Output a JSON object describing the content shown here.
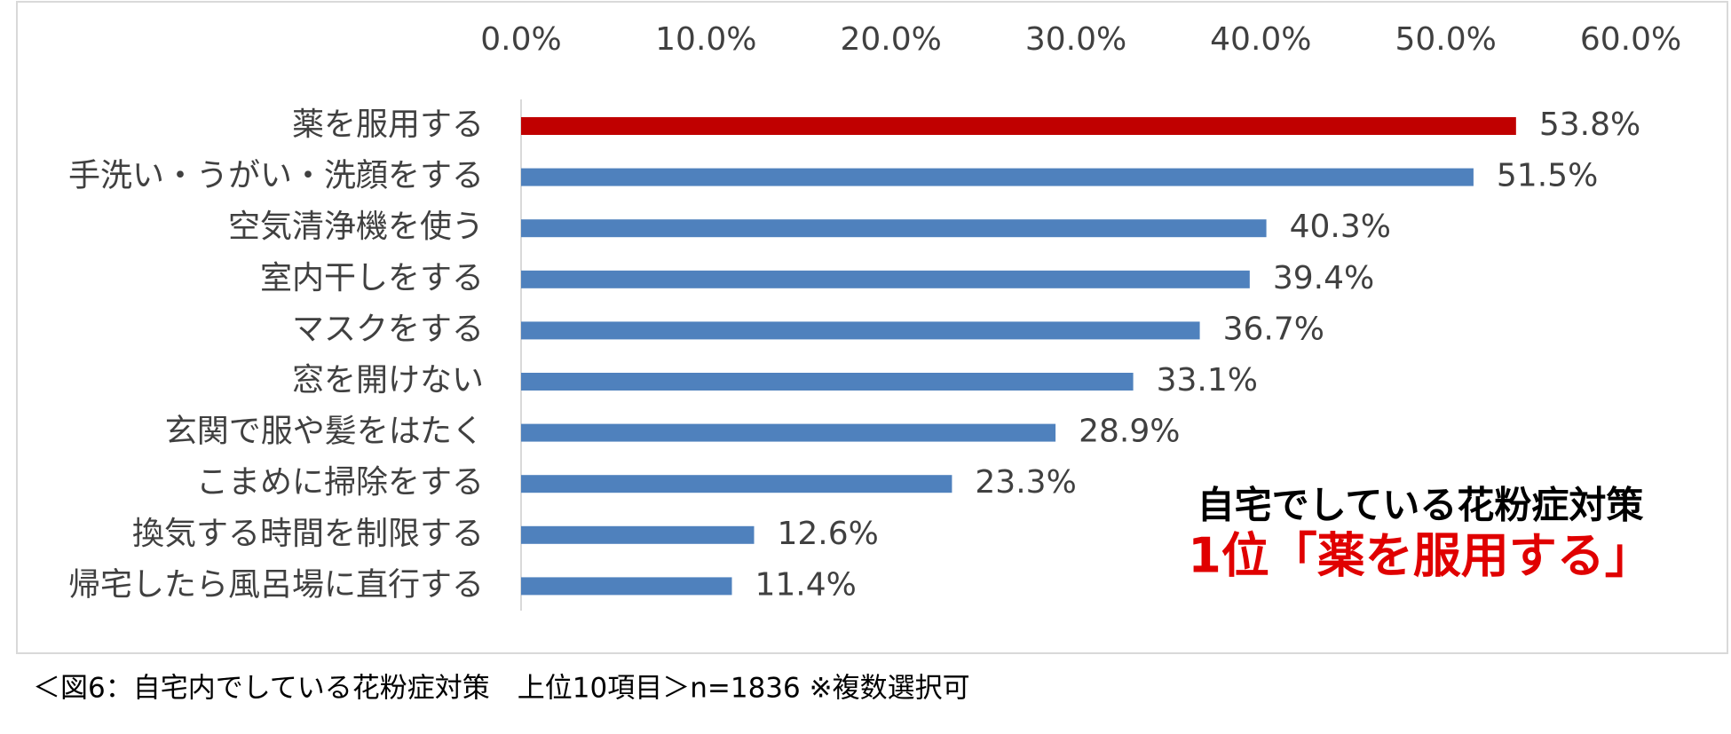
{
  "chart_data": {
    "type": "barh",
    "categories": [
      "薬を服用する",
      "手洗い・うがい・洗顔をする",
      "空気清浄機を使う",
      "室内干しをする",
      "マスクをする",
      "窓を開けない",
      "玄関で服や髪をはたく",
      "こまめに掃除をする",
      "換気する時間を制限する",
      "帰宅したら風呂場に直行する"
    ],
    "values": [
      53.8,
      51.5,
      40.3,
      39.4,
      36.7,
      33.1,
      28.9,
      23.3,
      12.6,
      11.4
    ],
    "value_labels": [
      "53.8%",
      "51.5%",
      "40.3%",
      "39.4%",
      "36.7%",
      "33.1%",
      "28.9%",
      "23.3%",
      "12.6%",
      "11.4%"
    ],
    "colors": [
      "#c00000",
      "#4f81bd",
      "#4f81bd",
      "#4f81bd",
      "#4f81bd",
      "#4f81bd",
      "#4f81bd",
      "#4f81bd",
      "#4f81bd",
      "#4f81bd"
    ],
    "xlim": [
      0,
      60
    ],
    "xticks": [
      {
        "value": 0,
        "label": "0.0%"
      },
      {
        "value": 10,
        "label": "10.0%"
      },
      {
        "value": 20,
        "label": "20.0%"
      },
      {
        "value": 30,
        "label": "30.0%"
      },
      {
        "value": 40,
        "label": "40.0%"
      },
      {
        "value": 50,
        "label": "50.0%"
      },
      {
        "value": 60,
        "label": "60.0%"
      }
    ],
    "annotations": [
      "自宅でしている花粉症対策",
      "1位「薬を服用する」"
    ],
    "caption": "＜図6：自宅内でしている花粉症対策　上位10項目＞n=1836 ※複数選択可"
  }
}
